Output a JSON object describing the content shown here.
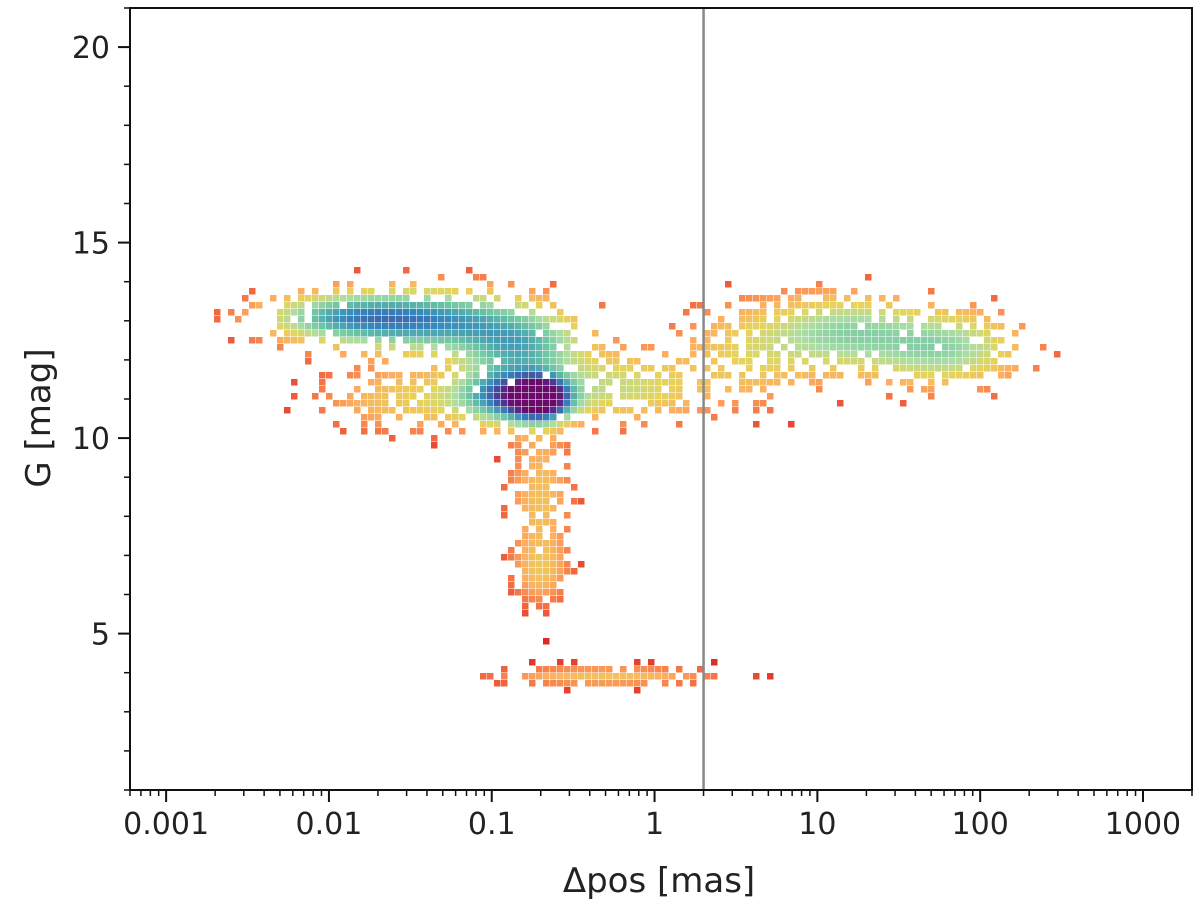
{
  "chart_data": {
    "type": "heatmap",
    "subtype": "2d-density-histogram",
    "title": "",
    "xlabel": "Δpos [mas]",
    "ylabel": "G [mag]",
    "xscale": "log",
    "xlim": [
      0.0006,
      2000
    ],
    "ylim": [
      1,
      21
    ],
    "x_ticks": [
      {
        "value": 0.001,
        "label": "0.001"
      },
      {
        "value": 0.01,
        "label": "0.01"
      },
      {
        "value": 0.1,
        "label": "0.1"
      },
      {
        "value": 1,
        "label": "1"
      },
      {
        "value": 10,
        "label": "10"
      },
      {
        "value": 100,
        "label": "100"
      },
      {
        "value": 1000,
        "label": "1000"
      }
    ],
    "y_ticks": [
      {
        "value": 5,
        "label": "5"
      },
      {
        "value": 10,
        "label": "10"
      },
      {
        "value": 15,
        "label": "15"
      },
      {
        "value": 20,
        "label": "20"
      }
    ],
    "reference_line": {
      "axis": "x",
      "value": 2.0,
      "color": "#888888"
    },
    "grid": false,
    "colormap": [
      "#d7191c",
      "#f46d43",
      "#fdae61",
      "#e6d45a",
      "#abdda4",
      "#66c2a5",
      "#3288bd",
      "#4b3a9a",
      "#6a0a6a"
    ],
    "density_clumps": [
      {
        "x": 0.2,
        "y": 11.0,
        "sx": 0.12,
        "sy": 0.35,
        "peak": 1.0
      },
      {
        "x": 0.13,
        "y": 11.1,
        "sx": 0.2,
        "sy": 0.45,
        "peak": 0.65
      },
      {
        "x": 0.04,
        "y": 13.0,
        "sx": 0.45,
        "sy": 0.5,
        "peak": 0.55
      },
      {
        "x": 0.012,
        "y": 13.1,
        "sx": 0.3,
        "sy": 0.35,
        "peak": 0.3
      },
      {
        "x": 0.15,
        "y": 12.3,
        "sx": 0.25,
        "sy": 0.5,
        "peak": 0.4
      },
      {
        "x": 0.6,
        "y": 11.3,
        "sx": 0.35,
        "sy": 0.55,
        "peak": 0.22
      },
      {
        "x": 0.035,
        "y": 11.0,
        "sx": 0.35,
        "sy": 0.5,
        "peak": 0.15
      },
      {
        "x": 15,
        "y": 12.7,
        "sx": 0.3,
        "sy": 0.6,
        "peak": 0.3
      },
      {
        "x": 60,
        "y": 12.3,
        "sx": 0.3,
        "sy": 0.6,
        "peak": 0.32
      },
      {
        "x": 4,
        "y": 12.2,
        "sx": 0.3,
        "sy": 0.8,
        "peak": 0.15
      },
      {
        "x": 0.2,
        "y": 8.5,
        "sx": 0.12,
        "sy": 1.2,
        "peak": 0.12
      },
      {
        "x": 0.2,
        "y": 6.6,
        "sx": 0.1,
        "sy": 0.5,
        "peak": 0.1
      },
      {
        "x": 0.5,
        "y": 3.9,
        "sx": 0.4,
        "sy": 0.15,
        "peak": 0.12
      }
    ]
  }
}
